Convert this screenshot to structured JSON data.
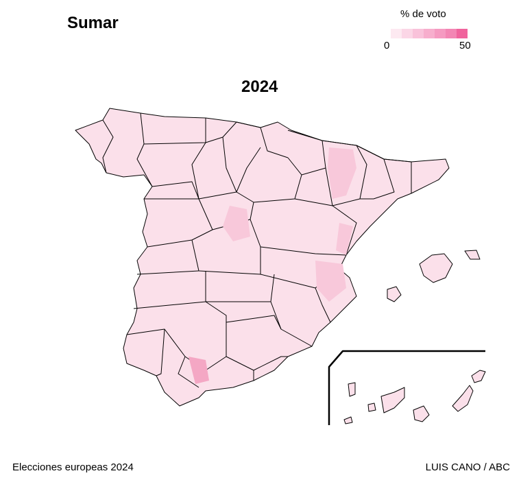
{
  "title": "Sumar",
  "year": "2024",
  "legend": {
    "title": "% de voto",
    "min": "0",
    "max": "50",
    "colors": [
      "#fde9f1",
      "#fbd6e6",
      "#f9c2da",
      "#f7aecd",
      "#f59ac1",
      "#f386b4",
      "#f0649d"
    ]
  },
  "colors": {
    "base_fill": "#fbe0ea",
    "medium_fill": "#f8c8da",
    "dark_fill": "#f4a7c4",
    "border": "#000000"
  },
  "footer": {
    "source": "Elecciones europeas 2024",
    "credit": "LUIS CANO / ABC"
  }
}
